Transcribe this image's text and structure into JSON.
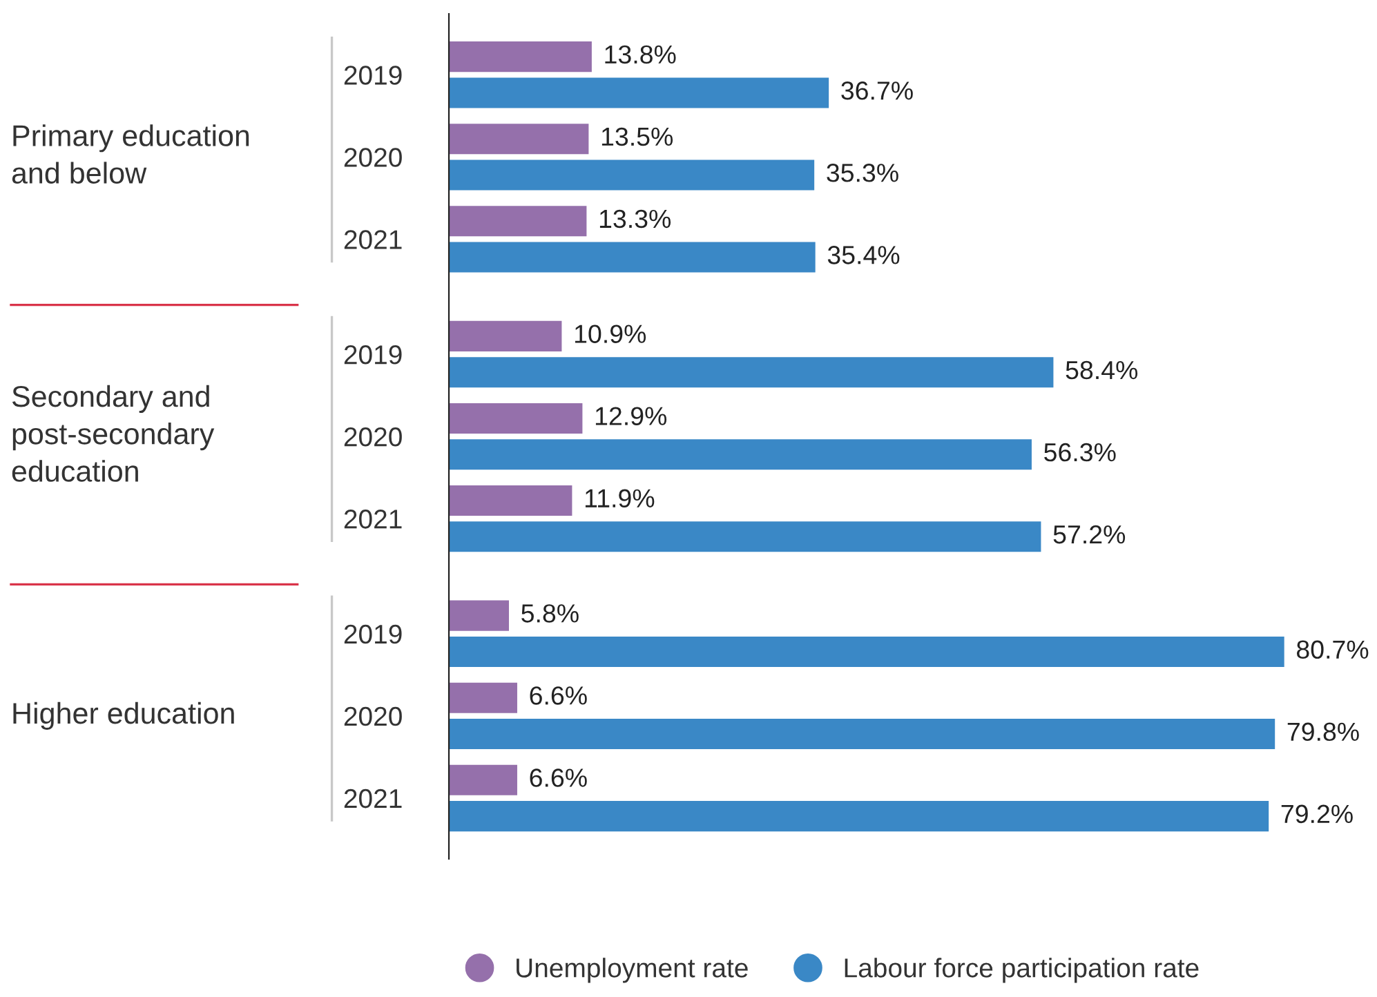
{
  "chart_data": {
    "type": "bar",
    "orientation": "horizontal",
    "categories": [
      "2019",
      "2020",
      "2021",
      "2019",
      "2020",
      "2021",
      "2019",
      "2020",
      "2021"
    ],
    "series": [
      {
        "name": "Unemployment rate",
        "color": "#9570ab",
        "values": [
          13.8,
          13.5,
          13.3,
          10.9,
          12.9,
          11.9,
          5.8,
          6.6,
          6.6
        ],
        "value_labels": [
          "13.8%",
          "13.5%",
          "13.3%",
          "10.9%",
          "12.9%",
          "11.9%",
          "5.8%",
          "6.6%",
          "6.6%"
        ]
      },
      {
        "name": "Labour force participation rate",
        "color": "#3a88c6",
        "values": [
          36.7,
          35.3,
          35.4,
          58.4,
          56.3,
          57.2,
          80.7,
          79.8,
          79.2
        ],
        "value_labels": [
          "36.7%",
          "35.3%",
          "35.4%",
          "58.4%",
          "56.3%",
          "57.2%",
          "80.7%",
          "79.8%",
          "79.2%"
        ]
      }
    ],
    "annotations": [
      "Primary education\nand below",
      "Secondary and\npost-secondary\neducation",
      "Higher education"
    ],
    "legend": "bottom",
    "grid": false
  }
}
